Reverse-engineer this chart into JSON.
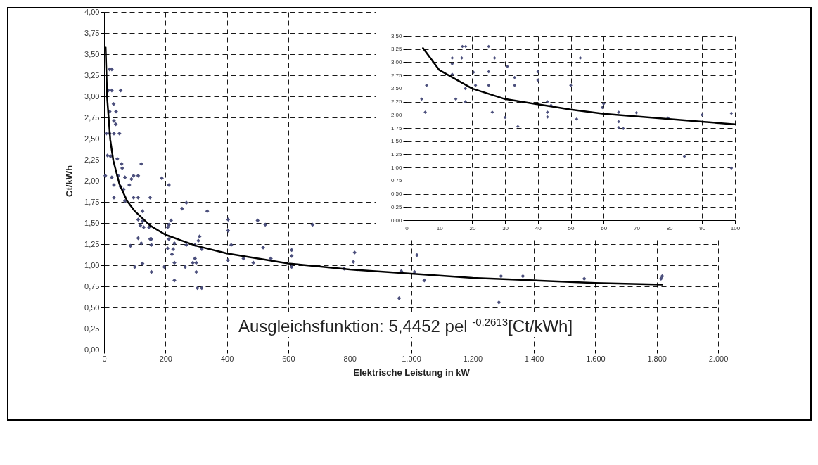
{
  "chart_data": [
    {
      "type": "scatter",
      "xlabel": "Elektrische Leistung in kW",
      "ylabel": "Ct/kWh",
      "xlim": [
        0,
        2000
      ],
      "ylim": [
        0,
        4
      ],
      "xticks": [
        0,
        200,
        400,
        600,
        800,
        {
          "value": 1000,
          "label": "1.000"
        },
        {
          "value": 1200,
          "label": "1.200"
        },
        {
          "value": 1400,
          "label": "1.400"
        },
        {
          "value": 1600,
          "label": "1.600"
        },
        {
          "value": 1800,
          "label": "1.800"
        },
        {
          "value": 2000,
          "label": "2.000"
        }
      ],
      "yticks": [
        {
          "value": 0,
          "label": "0,00"
        },
        {
          "value": 0.25,
          "label": "0,25"
        },
        {
          "value": 0.5,
          "label": "0,50"
        },
        {
          "value": 0.75,
          "label": "0,75"
        },
        {
          "value": 1,
          "label": "1,00"
        },
        {
          "value": 1.25,
          "label": "1,25"
        },
        {
          "value": 1.5,
          "label": "1,50"
        },
        {
          "value": 1.75,
          "label": "1,75"
        },
        {
          "value": 2,
          "label": "2,00"
        },
        {
          "value": 2.25,
          "label": "2,25"
        },
        {
          "value": 2.5,
          "label": "2,50"
        },
        {
          "value": 2.75,
          "label": "2,75"
        },
        {
          "value": 3,
          "label": "3,00"
        },
        {
          "value": 3.25,
          "label": "3,25"
        },
        {
          "value": 3.5,
          "label": "3,50"
        },
        {
          "value": 3.75,
          "label": "3,75"
        },
        {
          "value": 4,
          "label": "4,00"
        }
      ],
      "grid": true,
      "annotations": [
        "Ausgleichsfunktion: 5,4452 pel $^{-0,2613}$[Ct/kWh]"
      ],
      "series": [
        {
          "marker": "diamond",
          "color": "#4b4f7c",
          "x": [
            18,
            25,
            14,
            25,
            54,
            31,
            18,
            39,
            32,
            38,
            7,
            18,
            32,
            50,
            11,
            21,
            43,
            57,
            59,
            121,
            4,
            25,
            46,
            68,
            96,
            111,
            89,
            82,
            32,
            54,
            64,
            188,
            211,
            32,
            68,
            96,
            111,
            150,
            125,
            111,
            125,
            118,
            129,
            146,
            218,
            211,
            207,
            254,
            268,
            336,
            404,
            404,
            500,
            525,
            679,
            111,
            150,
            311,
            307,
            211,
            229,
            207,
            225,
            268,
            296,
            318,
            414,
            518,
            86,
            121,
            154,
            154,
            221,
            296,
            289,
            300,
            404,
            454,
            486,
            543,
            611,
            611,
            611,
            125,
            100,
            154,
            196,
            229,
            264,
            300,
            229,
            304,
            318,
            816,
            812,
            782,
            968,
            961,
            1011,
            1019,
            1043,
            1293,
            1286,
            1364,
            1564,
            1818,
            1814
          ],
          "values": [
            3.32,
            3.32,
            3.07,
            3.07,
            3.07,
            2.91,
            2.82,
            2.82,
            2.71,
            2.67,
            2.56,
            2.56,
            2.56,
            2.56,
            2.3,
            2.29,
            2.26,
            2.2,
            2.15,
            2.2,
            2.06,
            2.04,
            2.06,
            2.04,
            2.06,
            2.06,
            2.02,
            1.95,
            1.95,
            1.93,
            1.9,
            2.03,
            1.95,
            1.8,
            1.76,
            1.8,
            1.8,
            1.8,
            1.64,
            1.54,
            1.52,
            1.47,
            1.45,
            1.45,
            1.53,
            1.48,
            1.45,
            1.67,
            1.74,
            1.64,
            1.54,
            1.41,
            1.53,
            1.48,
            1.48,
            1.32,
            1.31,
            1.34,
            1.29,
            1.31,
            1.26,
            1.2,
            1.19,
            1.24,
            1.24,
            1.19,
            1.24,
            1.21,
            1.23,
            1.26,
            1.24,
            1.31,
            1.13,
            1.08,
            1.03,
            1.03,
            1.06,
            1.08,
            1.03,
            1.08,
            1.18,
            1.11,
            0.98,
            1.02,
            0.98,
            0.92,
            0.98,
            1.03,
            0.98,
            0.92,
            0.82,
            0.73,
            0.73,
            1.15,
            1.04,
            0.96,
            0.93,
            0.61,
            0.92,
            1.12,
            0.82,
            0.87,
            0.56,
            0.87,
            0.84,
            0.87,
            0.84
          ]
        },
        {
          "type": "line",
          "color": "#000000",
          "x": [
            5,
            10,
            20,
            30,
            50,
            75,
            100,
            150,
            200,
            300,
            400,
            600,
            800,
            1000,
            1200,
            1400,
            1600,
            1818
          ],
          "values": [
            3.58,
            2.98,
            2.49,
            2.24,
            1.96,
            1.76,
            1.64,
            1.47,
            1.36,
            1.23,
            1.14,
            1.02,
            0.95,
            0.9,
            0.85,
            0.82,
            0.79,
            0.77
          ]
        }
      ]
    },
    {
      "type": "scatter",
      "xlim": [
        0,
        100
      ],
      "ylim": [
        0,
        3.5
      ],
      "xticks": [
        0,
        10,
        20,
        30,
        40,
        50,
        60,
        70,
        80,
        90,
        100
      ],
      "yticks": [
        {
          "value": 0,
          "label": "0,00"
        },
        {
          "value": 0.25,
          "label": "0,25"
        },
        {
          "value": 0.5,
          "label": "0,50"
        },
        {
          "value": 0.75,
          "label": "0,75"
        },
        {
          "value": 1,
          "label": "1,00"
        },
        {
          "value": 1.25,
          "label": "1,25"
        },
        {
          "value": 1.5,
          "label": "1,50"
        },
        {
          "value": 1.75,
          "label": "1,75"
        },
        {
          "value": 2,
          "label": "2,00"
        },
        {
          "value": 2.25,
          "label": "2,25"
        },
        {
          "value": 2.5,
          "label": "2,50"
        },
        {
          "value": 2.75,
          "label": "2,75"
        },
        {
          "value": 3,
          "label": "3,00"
        },
        {
          "value": 3.25,
          "label": "3,25"
        },
        {
          "value": 3.5,
          "label": "3,50"
        }
      ],
      "grid": true,
      "series": [
        {
          "marker": "diamond",
          "color": "#4b4f7c",
          "x": [
            17,
            18,
            25,
            13.9,
            13.9,
            16.8,
            26.8,
            52.9,
            30.7,
            13.9,
            20.4,
            25,
            32.9,
            40,
            40,
            6.1,
            21,
            25,
            32.9,
            50,
            17.9,
            4.6,
            15,
            17.9,
            42.9,
            44,
            60,
            59.6,
            5.7,
            26.1,
            30,
            42.9,
            42.9,
            64.6,
            70,
            90,
            98.9,
            51.8,
            79.6,
            33.9,
            64.6,
            64.6,
            66,
            84.6,
            98.9
          ],
          "values": [
            3.3,
            3.3,
            3.3,
            3.08,
            2.97,
            3.08,
            3.08,
            3.08,
            2.92,
            2.77,
            2.81,
            2.82,
            2.71,
            2.82,
            2.66,
            2.56,
            2.56,
            2.56,
            2.56,
            2.56,
            2.5,
            2.3,
            2.3,
            2.25,
            2.25,
            2.18,
            2.21,
            2.14,
            2.05,
            2.05,
            1.95,
            2.05,
            1.96,
            2.05,
            2.04,
            2.0,
            2.03,
            1.92,
            1.94,
            1.78,
            1.87,
            1.76,
            1.74,
            1.21,
            0.99
          ]
        },
        {
          "type": "line",
          "color": "#000000",
          "x": [
            5,
            10,
            20,
            30,
            40,
            50,
            60,
            70,
            80,
            90,
            100
          ],
          "values": [
            3.27,
            2.85,
            2.5,
            2.3,
            2.2,
            2.1,
            2.02,
            1.97,
            1.92,
            1.87,
            1.82
          ]
        }
      ]
    }
  ]
}
